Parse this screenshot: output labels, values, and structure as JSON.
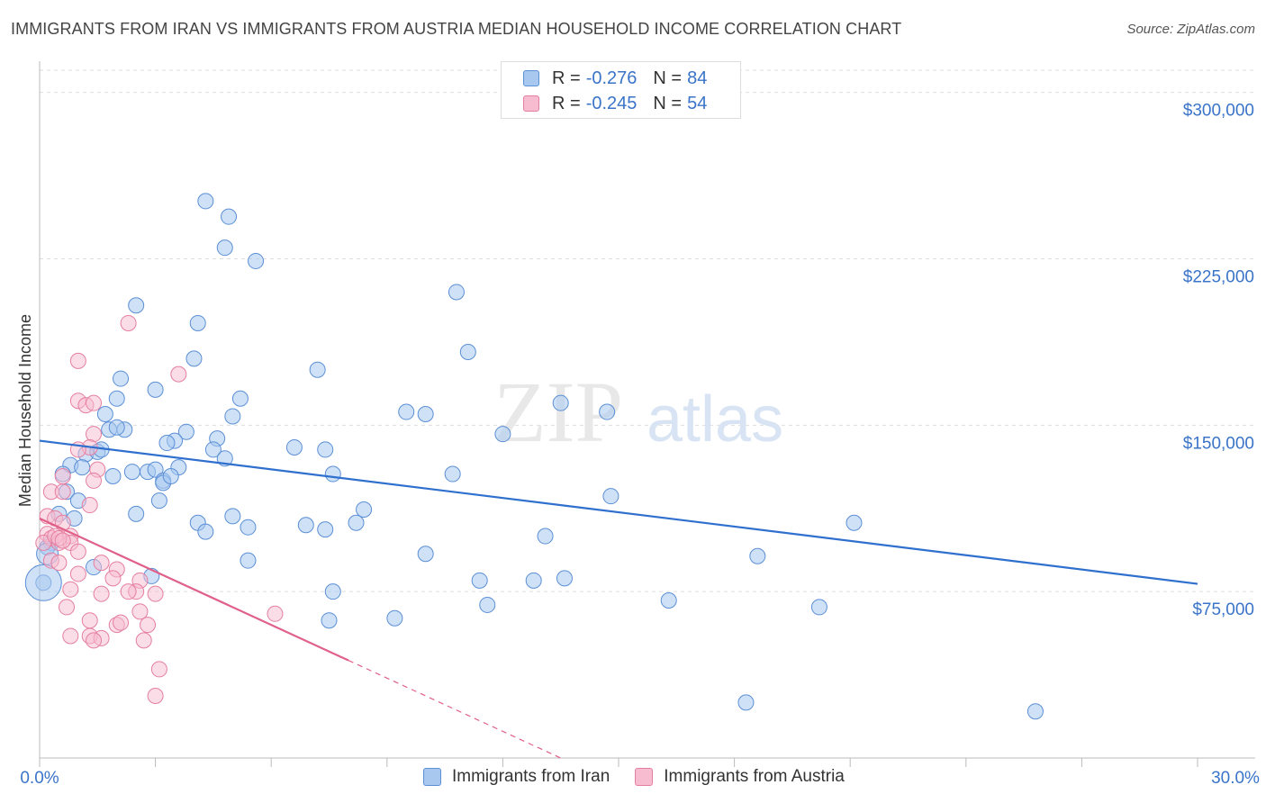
{
  "title": "IMMIGRANTS FROM IRAN VS IMMIGRANTS FROM AUSTRIA MEDIAN HOUSEHOLD INCOME CORRELATION CHART",
  "source": "Source: ZipAtlas.com",
  "watermark": {
    "zip": "ZIP",
    "atlas": "atlas"
  },
  "legend": {
    "iran": {
      "r_label": "R =",
      "r_value": "-0.276",
      "n_label": "N =",
      "n_value": "84"
    },
    "austria": {
      "r_label": "R =",
      "r_value": "-0.245",
      "n_label": "N =",
      "n_value": "54"
    }
  },
  "bottom_legend": {
    "iran": "Immigrants from Iran",
    "austria": "Immigrants from Austria"
  },
  "colors": {
    "iran_fill": "#a8c8f0",
    "iran_stroke": "#5b8fd6",
    "iran_line": "#2f6fce",
    "austria_fill": "#f8bcd0",
    "austria_stroke": "#e57fa0",
    "austria_line": "#e0608a",
    "axis_text": "#3a74c9",
    "grid": "#dddddd"
  },
  "chart_data": {
    "type": "scatter",
    "title": "IMMIGRANTS FROM IRAN VS IMMIGRANTS FROM AUSTRIA MEDIAN HOUSEHOLD INCOME CORRELATION CHART",
    "xlabel": "",
    "ylabel": "Median Household Income",
    "xlim": [
      0,
      30
    ],
    "ylim": [
      0,
      310000
    ],
    "x_tick_labels": [
      "0.0%",
      "30.0%"
    ],
    "y_ticks": [
      75000,
      150000,
      225000,
      300000
    ],
    "y_tick_labels": [
      "$75,000",
      "$150,000",
      "$225,000",
      "$300,000"
    ],
    "grid": true,
    "legend_position": "top-center",
    "series": [
      {
        "name": "Immigrants from Iran",
        "trend": {
          "x": [
            0,
            30
          ],
          "y": [
            143000,
            78500
          ]
        },
        "points": [
          [
            4.3,
            251000
          ],
          [
            4.9,
            244000
          ],
          [
            4.8,
            230000
          ],
          [
            5.6,
            224000
          ],
          [
            10.8,
            210000
          ],
          [
            2.5,
            204000
          ],
          [
            4.1,
            196000
          ],
          [
            11.1,
            183000
          ],
          [
            4.0,
            180000
          ],
          [
            7.2,
            175000
          ],
          [
            2.1,
            171000
          ],
          [
            3.0,
            166000
          ],
          [
            14.7,
            156000
          ],
          [
            2.0,
            162000
          ],
          [
            5.2,
            162000
          ],
          [
            9.5,
            156000
          ],
          [
            10.0,
            155000
          ],
          [
            1.7,
            155000
          ],
          [
            5.0,
            154000
          ],
          [
            13.5,
            160000
          ],
          [
            2.2,
            148000
          ],
          [
            1.8,
            148000
          ],
          [
            3.8,
            147000
          ],
          [
            4.6,
            144000
          ],
          [
            12.0,
            146000
          ],
          [
            3.5,
            143000
          ],
          [
            3.3,
            142000
          ],
          [
            6.6,
            140000
          ],
          [
            4.5,
            139000
          ],
          [
            7.4,
            139000
          ],
          [
            1.2,
            137000
          ],
          [
            1.5,
            138000
          ],
          [
            4.8,
            135000
          ],
          [
            0.8,
            132000
          ],
          [
            1.1,
            131000
          ],
          [
            2.4,
            129000
          ],
          [
            3.6,
            131000
          ],
          [
            2.8,
            129000
          ],
          [
            3.0,
            130000
          ],
          [
            1.9,
            127000
          ],
          [
            7.6,
            128000
          ],
          [
            10.7,
            128000
          ],
          [
            0.6,
            128000
          ],
          [
            3.2,
            125000
          ],
          [
            3.2,
            124000
          ],
          [
            0.7,
            120000
          ],
          [
            3.1,
            116000
          ],
          [
            1.0,
            116000
          ],
          [
            14.8,
            118000
          ],
          [
            8.4,
            112000
          ],
          [
            2.5,
            110000
          ],
          [
            0.5,
            110000
          ],
          [
            4.1,
            106000
          ],
          [
            5.0,
            109000
          ],
          [
            4.3,
            102000
          ],
          [
            5.4,
            104000
          ],
          [
            6.9,
            105000
          ],
          [
            7.4,
            103000
          ],
          [
            8.2,
            106000
          ],
          [
            13.1,
            100000
          ],
          [
            21.1,
            106000
          ],
          [
            0.3,
            97000
          ],
          [
            0.2,
            95000
          ],
          [
            10.0,
            92000
          ],
          [
            18.6,
            91000
          ],
          [
            5.4,
            89000
          ],
          [
            1.4,
            86000
          ],
          [
            2.9,
            82000
          ],
          [
            13.6,
            81000
          ],
          [
            11.4,
            80000
          ],
          [
            12.8,
            80000
          ],
          [
            7.6,
            75000
          ],
          [
            16.3,
            71000
          ],
          [
            11.6,
            69000
          ],
          [
            20.2,
            68000
          ],
          [
            7.5,
            62000
          ],
          [
            9.2,
            63000
          ],
          [
            18.3,
            25000
          ],
          [
            25.8,
            21000
          ],
          [
            0.1,
            79000
          ],
          [
            0.9,
            108000
          ],
          [
            1.6,
            139000
          ],
          [
            2.0,
            149000
          ],
          [
            3.4,
            127000
          ]
        ]
      },
      {
        "name": "Immigrants from Austria",
        "trend": {
          "x": [
            0,
            8
          ],
          "y": [
            108000,
            44000
          ]
        },
        "trend_dashed": {
          "x": [
            8,
            13.5
          ],
          "y": [
            44000,
            0
          ]
        },
        "points": [
          [
            2.3,
            196000
          ],
          [
            1.0,
            179000
          ],
          [
            3.6,
            173000
          ],
          [
            1.0,
            161000
          ],
          [
            1.2,
            159000
          ],
          [
            1.4,
            160000
          ],
          [
            1.4,
            146000
          ],
          [
            1.3,
            140000
          ],
          [
            1.0,
            139000
          ],
          [
            0.6,
            127000
          ],
          [
            1.5,
            130000
          ],
          [
            1.4,
            125000
          ],
          [
            0.3,
            120000
          ],
          [
            0.6,
            120000
          ],
          [
            1.3,
            114000
          ],
          [
            0.2,
            109000
          ],
          [
            0.4,
            108000
          ],
          [
            0.6,
            106000
          ],
          [
            0.2,
            101000
          ],
          [
            0.8,
            100000
          ],
          [
            0.3,
            99000
          ],
          [
            0.5,
            97000
          ],
          [
            0.8,
            97000
          ],
          [
            0.1,
            97000
          ],
          [
            0.4,
            100000
          ],
          [
            0.5,
            99000
          ],
          [
            0.6,
            98000
          ],
          [
            1.0,
            93000
          ],
          [
            0.3,
            89000
          ],
          [
            0.5,
            88000
          ],
          [
            1.6,
            88000
          ],
          [
            2.0,
            85000
          ],
          [
            1.0,
            83000
          ],
          [
            2.6,
            80000
          ],
          [
            1.9,
            81000
          ],
          [
            0.8,
            76000
          ],
          [
            1.6,
            74000
          ],
          [
            2.5,
            75000
          ],
          [
            3.0,
            74000
          ],
          [
            2.3,
            75000
          ],
          [
            0.7,
            68000
          ],
          [
            2.6,
            66000
          ],
          [
            6.1,
            65000
          ],
          [
            1.3,
            62000
          ],
          [
            2.0,
            60000
          ],
          [
            2.1,
            61000
          ],
          [
            2.8,
            60000
          ],
          [
            1.3,
            55000
          ],
          [
            0.8,
            55000
          ],
          [
            1.6,
            54000
          ],
          [
            1.4,
            53000
          ],
          [
            2.7,
            53000
          ],
          [
            3.1,
            40000
          ],
          [
            3.0,
            28000
          ]
        ]
      }
    ]
  }
}
